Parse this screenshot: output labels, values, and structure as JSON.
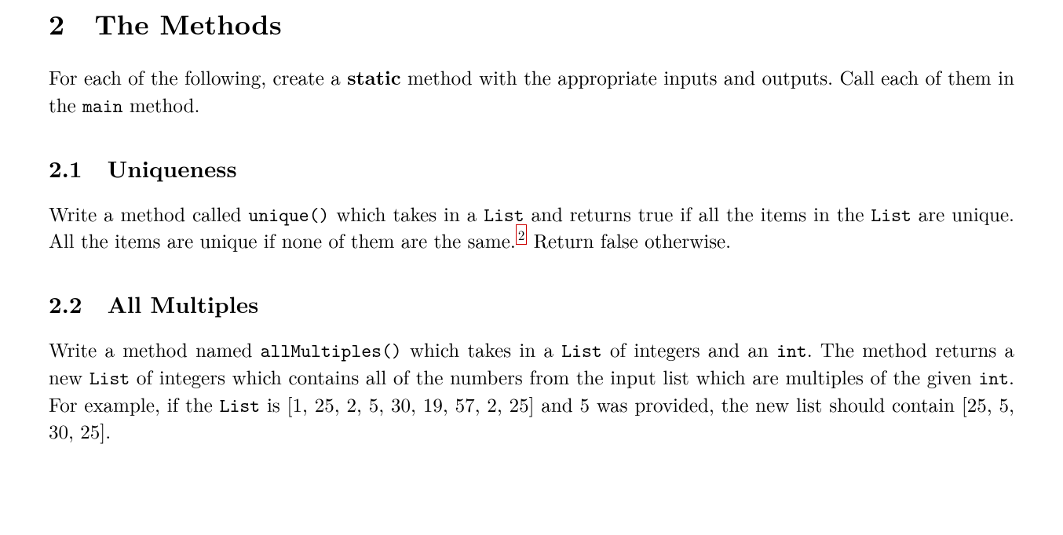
{
  "section": {
    "number": "2",
    "title": "The Methods",
    "intro_parts": {
      "t1": "For each of the following, create a ",
      "static": "static",
      "t2": " method with the appropriate inputs and outputs. Call each of them in the ",
      "main": "main",
      "t3": " method."
    }
  },
  "sub1": {
    "number": "2.1",
    "title": "Uniqueness",
    "p": {
      "t1": "Write a method called ",
      "unique": "unique()",
      "t2": " which takes in a ",
      "list1": "List",
      "t3": " and returns true if all the items in the ",
      "list2": "List",
      "t4": " are unique. All the items are unique if none of them are the same.",
      "fn": "2",
      "t5": " Return false otherwise."
    }
  },
  "sub2": {
    "number": "2.2",
    "title": "All Multiples",
    "p": {
      "t1": "Write a method named ",
      "allmultiples": "allMultiples()",
      "t2": " which takes in a ",
      "list1": "List",
      "t3": " of integers and an ",
      "int1": "int",
      "t4": ". The method returns a new ",
      "list2": "List",
      "t5": " of integers which contains all of the numbers from the input list which are multiples of the given ",
      "int2": "int",
      "t6": ". For example, if the ",
      "list3": "List",
      "t7": " is [1, 25, 2, 5, 30, 19, 57, 2, 25] and 5 was provided, the new list should contain [25, 5, 30, 25]."
    }
  }
}
